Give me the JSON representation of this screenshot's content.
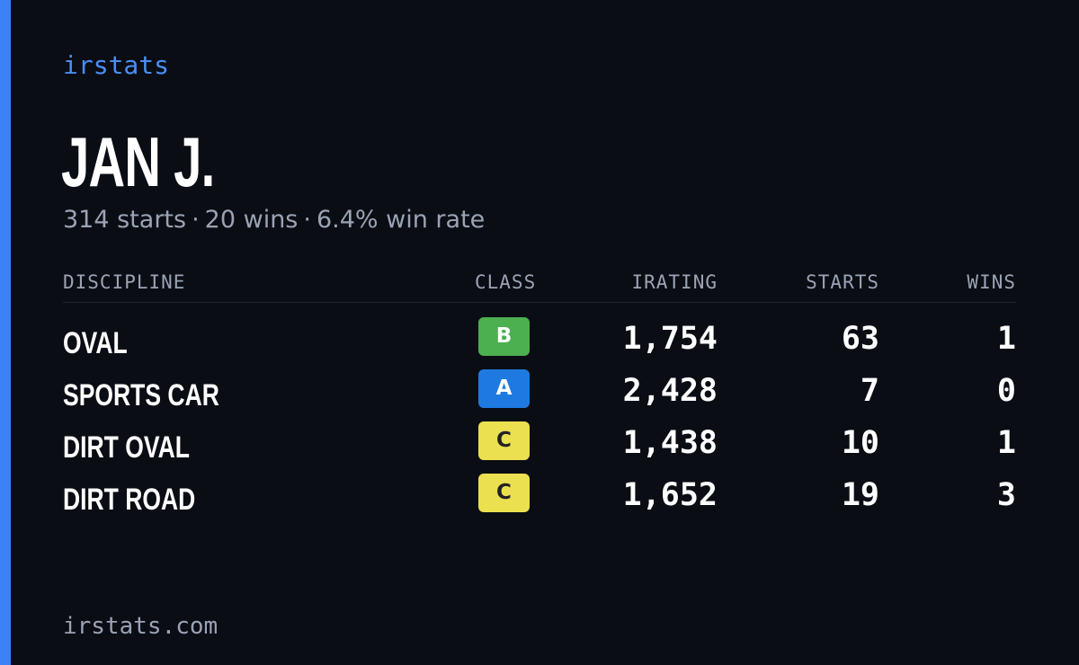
{
  "brand": "irstats",
  "player": {
    "name": "JAN J.",
    "starts_text": "314 starts",
    "wins_text": "20 wins",
    "winrate_text": "6.4% win rate",
    "separator": "·"
  },
  "table": {
    "headers": {
      "discipline": "DISCIPLINE",
      "class": "CLASS",
      "irating": "IRATING",
      "starts": "STARTS",
      "wins": "WINS"
    },
    "rows": [
      {
        "discipline": "OVAL",
        "class": "B",
        "class_color": "#4caf50",
        "class_text_color": "#ffffff",
        "irating": "1,754",
        "starts": "63",
        "wins": "1"
      },
      {
        "discipline": "SPORTS CAR",
        "class": "A",
        "class_color": "#1e7ae0",
        "class_text_color": "#ffffff",
        "irating": "2,428",
        "starts": "7",
        "wins": "0"
      },
      {
        "discipline": "DIRT OVAL",
        "class": "C",
        "class_color": "#ebe050",
        "class_text_color": "#222222",
        "irating": "1,438",
        "starts": "10",
        "wins": "1"
      },
      {
        "discipline": "DIRT ROAD",
        "class": "C",
        "class_color": "#ebe050",
        "class_text_color": "#222222",
        "irating": "1,652",
        "starts": "19",
        "wins": "3"
      }
    ]
  },
  "footer": {
    "url": "irstats.com"
  },
  "colors": {
    "background": "#0a0d14",
    "accent": "#3b82f6",
    "brand_text": "#4a8ef5",
    "muted_text": "#9ba3b4"
  }
}
